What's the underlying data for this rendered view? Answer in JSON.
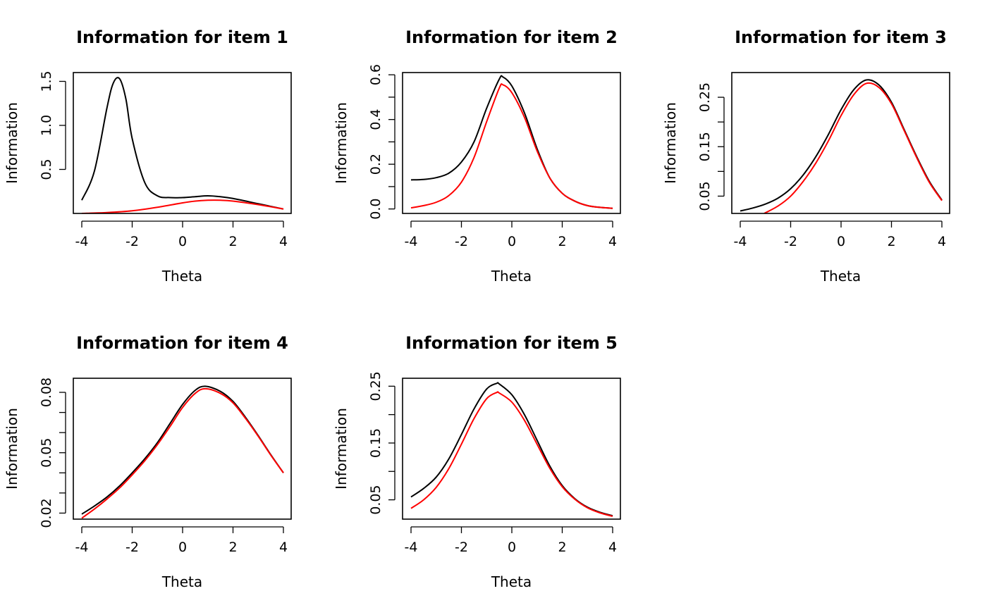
{
  "chart_data": [
    {
      "type": "line",
      "title": "Information for item 1",
      "xlabel": "Theta",
      "ylabel": "Information",
      "xlim": [
        -4,
        4
      ],
      "ylim": [
        0,
        1.6
      ],
      "x_ticks": [
        -4,
        -2,
        0,
        2,
        4
      ],
      "y_ticks": [
        0.5,
        1.0,
        1.5
      ],
      "y_tick_labels": [
        "0.5",
        "1.0",
        "1.5"
      ],
      "series": [
        {
          "color": "#000000",
          "x": [
            -4,
            -3.5,
            -3,
            -2.75,
            -2.5,
            -2.25,
            -2,
            -1.5,
            -1,
            -0.5,
            0,
            0.5,
            1,
            1.5,
            2,
            3,
            4
          ],
          "y": [
            0.15,
            0.48,
            1.2,
            1.48,
            1.53,
            1.3,
            0.85,
            0.35,
            0.2,
            0.18,
            0.18,
            0.19,
            0.2,
            0.19,
            0.17,
            0.11,
            0.05
          ]
        },
        {
          "color": "#ff0000",
          "x": [
            -4,
            -3,
            -2,
            -1,
            0,
            0.5,
            1,
            1.5,
            2,
            3,
            4
          ],
          "y": [
            0.0,
            0.01,
            0.03,
            0.07,
            0.12,
            0.14,
            0.15,
            0.15,
            0.14,
            0.1,
            0.05
          ]
        }
      ]
    },
    {
      "type": "line",
      "title": "Information for item 2",
      "xlabel": "Theta",
      "ylabel": "Information",
      "xlim": [
        -4,
        4
      ],
      "ylim": [
        -0.02,
        0.61
      ],
      "x_ticks": [
        -4,
        -2,
        0,
        2,
        4
      ],
      "y_ticks": [
        0.0,
        0.1,
        0.2,
        0.3,
        0.4,
        0.5,
        0.6
      ],
      "y_tick_labels": [
        "0.0",
        "",
        "0.2",
        "",
        "0.4",
        "",
        "0.6"
      ],
      "series": [
        {
          "color": "#000000",
          "x": [
            -4,
            -3.5,
            -3,
            -2.5,
            -2,
            -1.5,
            -1,
            -0.5,
            -0.35,
            0,
            0.5,
            1,
            1.5,
            2,
            2.5,
            3,
            3.5,
            4
          ],
          "y": [
            0.13,
            0.132,
            0.14,
            0.16,
            0.21,
            0.3,
            0.45,
            0.58,
            0.59,
            0.55,
            0.43,
            0.27,
            0.14,
            0.07,
            0.035,
            0.015,
            0.007,
            0.003
          ]
        },
        {
          "color": "#ff0000",
          "x": [
            -4,
            -3.5,
            -3,
            -2.5,
            -2,
            -1.5,
            -1,
            -0.5,
            -0.35,
            0,
            0.5,
            1,
            1.5,
            2,
            2.5,
            3,
            3.5,
            4
          ],
          "y": [
            0.005,
            0.015,
            0.03,
            0.06,
            0.12,
            0.23,
            0.39,
            0.54,
            0.555,
            0.52,
            0.41,
            0.26,
            0.14,
            0.07,
            0.035,
            0.015,
            0.007,
            0.003
          ]
        }
      ]
    },
    {
      "type": "line",
      "title": "Information for item 3",
      "xlabel": "Theta",
      "ylabel": "Information",
      "xlim": [
        -4,
        4
      ],
      "ylim": [
        0.015,
        0.3
      ],
      "x_ticks": [
        -4,
        -2,
        0,
        2,
        4
      ],
      "y_ticks": [
        0.05,
        0.1,
        0.15,
        0.2,
        0.25
      ],
      "y_tick_labels": [
        "0.05",
        "",
        "0.15",
        "",
        "0.25"
      ],
      "series": [
        {
          "color": "#000000",
          "x": [
            -4,
            -3.5,
            -3,
            -2.5,
            -2,
            -1.5,
            -1,
            -0.5,
            0,
            0.5,
            1,
            1.5,
            2,
            2.5,
            3,
            3.5,
            4
          ],
          "y": [
            0.02,
            0.026,
            0.034,
            0.046,
            0.065,
            0.093,
            0.13,
            0.175,
            0.225,
            0.265,
            0.285,
            0.275,
            0.24,
            0.185,
            0.13,
            0.08,
            0.042
          ]
        },
        {
          "color": "#ff0000",
          "x": [
            -3.05,
            -2.5,
            -2,
            -1.5,
            -1,
            -0.5,
            0,
            0.5,
            1,
            1.5,
            2,
            2.5,
            3,
            3.5,
            4
          ],
          "y": [
            0.015,
            0.03,
            0.05,
            0.08,
            0.117,
            0.162,
            0.213,
            0.255,
            0.278,
            0.27,
            0.237,
            0.183,
            0.128,
            0.078,
            0.041
          ]
        }
      ]
    },
    {
      "type": "line",
      "title": "Information for item 4",
      "xlabel": "Theta",
      "ylabel": "Information",
      "xlim": [
        -4,
        4
      ],
      "ylim": [
        0.017,
        0.087
      ],
      "x_ticks": [
        -4,
        -2,
        0,
        2,
        4
      ],
      "y_ticks": [
        0.02,
        0.03,
        0.04,
        0.05,
        0.06,
        0.07,
        0.08
      ],
      "y_tick_labels": [
        "0.02",
        "",
        "",
        "0.05",
        "",
        "",
        "0.08"
      ],
      "series": [
        {
          "color": "#000000",
          "x": [
            -4,
            -3.5,
            -3,
            -2.5,
            -2,
            -1.5,
            -1,
            -0.5,
            0,
            0.5,
            0.9,
            1.5,
            2,
            2.5,
            3,
            3.5,
            4
          ],
          "y": [
            0.0195,
            0.0235,
            0.028,
            0.0335,
            0.04,
            0.047,
            0.055,
            0.0645,
            0.074,
            0.081,
            0.083,
            0.0805,
            0.0755,
            0.0675,
            0.0585,
            0.049,
            0.04
          ]
        },
        {
          "color": "#ff0000",
          "x": [
            -4,
            -3.5,
            -3,
            -2.5,
            -2,
            -1.5,
            -1,
            -0.5,
            0,
            0.5,
            0.9,
            1.5,
            2,
            2.5,
            3,
            3.5,
            4
          ],
          "y": [
            0.0175,
            0.022,
            0.027,
            0.0325,
            0.039,
            0.046,
            0.054,
            0.063,
            0.0725,
            0.0795,
            0.0818,
            0.0795,
            0.0748,
            0.067,
            0.0582,
            0.0488,
            0.04
          ]
        }
      ]
    },
    {
      "type": "line",
      "title": "Information for item 5",
      "xlabel": "Theta",
      "ylabel": "Information",
      "xlim": [
        -4,
        4
      ],
      "ylim": [
        0.016,
        0.264
      ],
      "x_ticks": [
        -4,
        -2,
        0,
        2,
        4
      ],
      "y_ticks": [
        0.05,
        0.1,
        0.15,
        0.2,
        0.25
      ],
      "y_tick_labels": [
        "0.05",
        "",
        "0.15",
        "",
        "0.25"
      ],
      "series": [
        {
          "color": "#000000",
          "x": [
            -4,
            -3.5,
            -3,
            -2.5,
            -2,
            -1.5,
            -1,
            -0.6,
            -0.5,
            0,
            0.5,
            1,
            1.5,
            2,
            2.5,
            3,
            3.5,
            4
          ],
          "y": [
            0.055,
            0.07,
            0.09,
            0.122,
            0.165,
            0.21,
            0.245,
            0.255,
            0.254,
            0.235,
            0.2,
            0.155,
            0.11,
            0.075,
            0.052,
            0.037,
            0.028,
            0.022
          ]
        },
        {
          "color": "#ff0000",
          "x": [
            -4,
            -3.5,
            -3,
            -2.5,
            -2,
            -1.5,
            -1,
            -0.6,
            -0.5,
            0,
            0.5,
            1,
            1.5,
            2,
            2.5,
            3,
            3.5,
            4
          ],
          "y": [
            0.035,
            0.05,
            0.072,
            0.105,
            0.148,
            0.193,
            0.228,
            0.239,
            0.238,
            0.222,
            0.19,
            0.148,
            0.106,
            0.073,
            0.051,
            0.036,
            0.027,
            0.021
          ]
        }
      ]
    }
  ]
}
